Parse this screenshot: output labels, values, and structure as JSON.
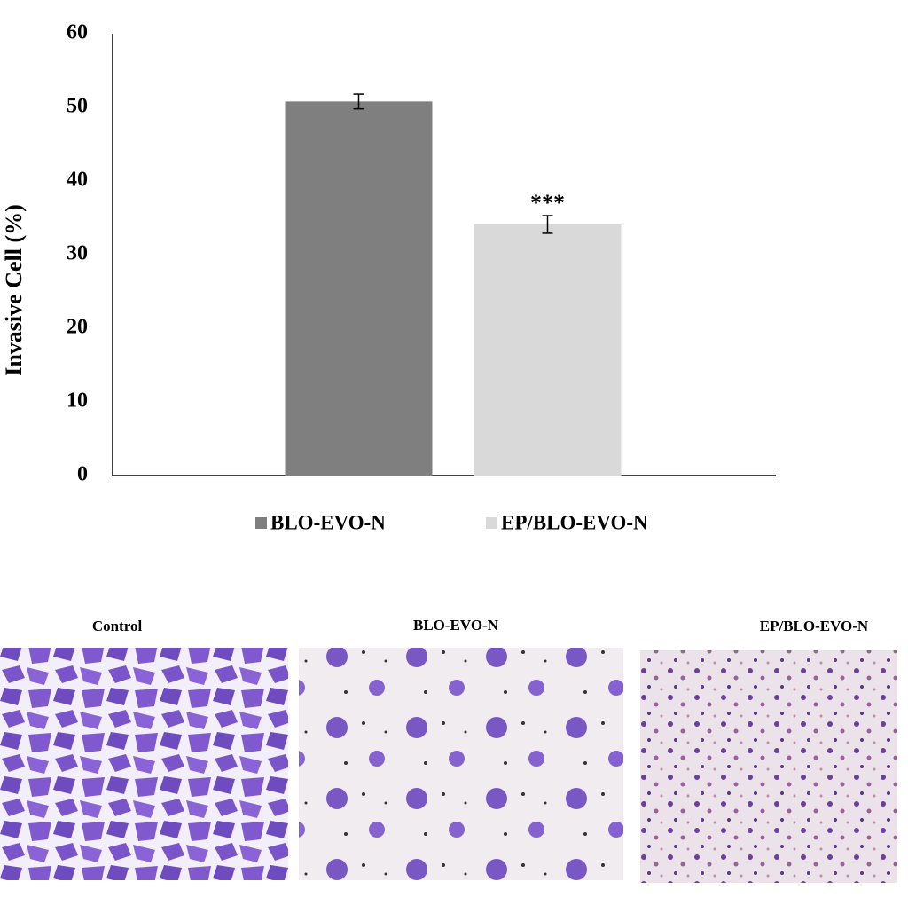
{
  "chart_data": {
    "type": "bar",
    "ylabel": "Invasive Cell  (%)",
    "categories": [
      null
    ],
    "series": [
      {
        "name": "BLO-EVO-N",
        "color": "#7f7f7f",
        "values": [
          50.8
        ],
        "errors": [
          1.0
        ]
      },
      {
        "name": "EP/BLO-EVO-N",
        "color": "#d9d9d9",
        "values": [
          34.1
        ],
        "errors": [
          1.2
        ]
      }
    ],
    "annotation": "***",
    "ylim": [
      0,
      60
    ],
    "yticks": [
      0,
      10,
      20,
      30,
      40,
      50,
      60
    ],
    "grid": false
  },
  "panels": {
    "labels": [
      "Control",
      "BLO-EVO-N",
      "EP/BLO-EVO-N"
    ]
  }
}
